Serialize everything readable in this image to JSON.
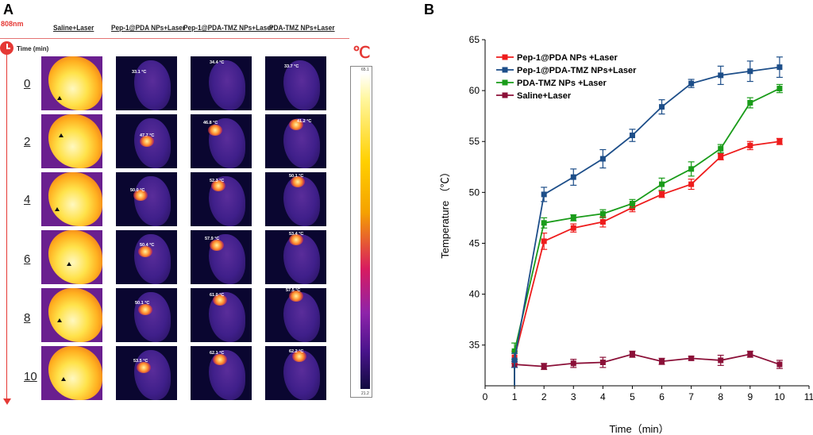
{
  "panel_a": {
    "letter": "A",
    "laser": "808nm",
    "time_label": "Time (min)",
    "columns": [
      "Saline+Laser",
      "Pep-1@PDA NPs+Laser",
      "Pep-1@PDA-TMZ NPs+Laser",
      "PDA-TMZ NPs+Laser"
    ],
    "times": [
      "0",
      "2",
      "4",
      "6",
      "8",
      "10"
    ],
    "temperature_labels": [
      [
        "33.1 °C",
        "34.4 °C",
        "33.7 °C"
      ],
      [
        "47.7 °C",
        "46.8 °C",
        "41.2 °C"
      ],
      [
        "50.0 °C",
        "52.3 °C",
        "50.1 °C"
      ],
      [
        "50.4 °C",
        "57.9 °C",
        "53.4 °C"
      ],
      [
        "50.1 °C",
        "61.0 °C",
        "57.5 °C"
      ],
      [
        "53.5 °C",
        "62.1 °C",
        "62.2 °C"
      ]
    ],
    "unit_symbol": "℃",
    "colorbar_max": "65.1",
    "colorbar_min": "21.2"
  },
  "panel_b": {
    "letter": "B"
  },
  "colors": {
    "red": "#ee1c1c",
    "blue": "#1d4e89",
    "green": "#1a9c1a",
    "maroon": "#8b1038"
  },
  "chart_data": {
    "type": "line",
    "title": "",
    "xlabel": "Time（min）",
    "ylabel": "Temperature  （℃）",
    "xlim": [
      0,
      11
    ],
    "ylim": [
      31,
      65
    ],
    "xticks": [
      0,
      1,
      2,
      3,
      4,
      5,
      6,
      7,
      8,
      9,
      10,
      11
    ],
    "yticks": [
      35,
      40,
      45,
      50,
      55,
      60,
      65
    ],
    "x": [
      1,
      2,
      3,
      4,
      5,
      6,
      7,
      8,
      9,
      10
    ],
    "legend_position": "top-left",
    "series": [
      {
        "name": "Pep-1@PDA NPs +Laser",
        "color": "#ee1c1c",
        "marker": "square",
        "values": [
          33.8,
          45.2,
          46.5,
          47.1,
          48.5,
          49.8,
          50.8,
          53.5,
          54.6,
          55.0
        ],
        "errors": [
          0.6,
          0.8,
          0.4,
          0.5,
          0.4,
          0.3,
          0.5,
          0.3,
          0.4,
          0.3
        ]
      },
      {
        "name": "Pep-1@PDA-TMZ NPs+Laser",
        "color": "#1d4e89",
        "marker": "square",
        "values": [
          33.5,
          49.8,
          51.5,
          53.3,
          55.6,
          58.4,
          60.7,
          61.5,
          61.9,
          62.3
        ],
        "errors": [
          0.7,
          0.7,
          0.8,
          0.9,
          0.6,
          0.7,
          0.4,
          0.9,
          1.0,
          1.0
        ]
      },
      {
        "name": "PDA-TMZ NPs +Laser",
        "color": "#1a9c1a",
        "marker": "square",
        "values": [
          34.4,
          47.0,
          47.5,
          47.9,
          48.9,
          50.8,
          52.3,
          54.3,
          58.8,
          60.2
        ],
        "errors": [
          0.8,
          0.5,
          0.3,
          0.4,
          0.4,
          0.6,
          0.7,
          0.4,
          0.5,
          0.4
        ]
      },
      {
        "name": "Saline+Laser",
        "color": "#8b1038",
        "marker": "square",
        "values": [
          33.1,
          32.9,
          33.2,
          33.3,
          34.1,
          33.4,
          33.7,
          33.5,
          34.1,
          33.1
        ],
        "errors": [
          0.3,
          0.3,
          0.4,
          0.5,
          0.3,
          0.3,
          0.2,
          0.5,
          0.3,
          0.4
        ]
      }
    ]
  }
}
